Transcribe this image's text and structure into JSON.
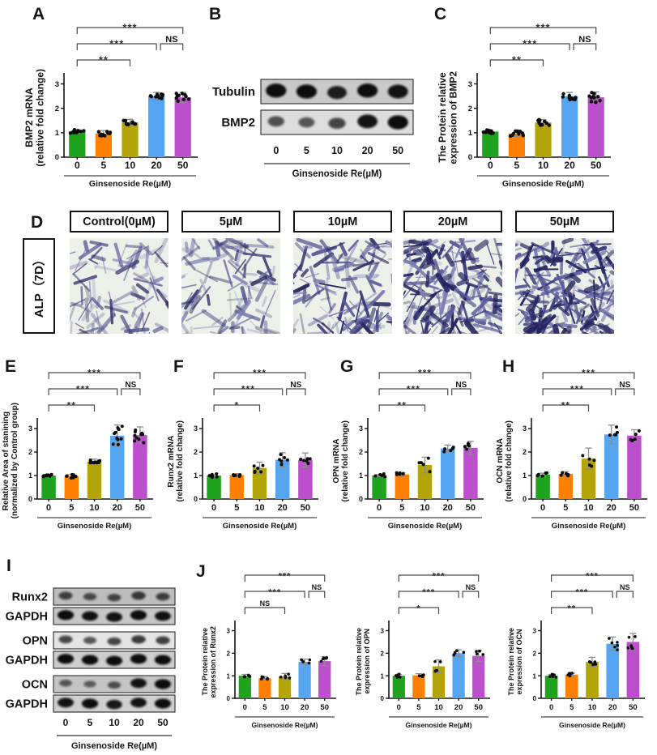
{
  "figure": {
    "panel_letters": {
      "A": "A",
      "B": "B",
      "C": "C",
      "D": "D",
      "E": "E",
      "F": "F",
      "G": "G",
      "H": "H",
      "I": "I",
      "J": "J"
    },
    "doses": [
      "0",
      "5",
      "10",
      "20",
      "50"
    ],
    "xlabel": "Ginsenoside Re(µM)",
    "bar_colors": [
      "#1FA31F",
      "#FF7F00",
      "#B3A409",
      "#56A5F0",
      "#BC4FCB"
    ],
    "dot_color": "#0B0B0B",
    "error_bar_color": "#8C8C8C",
    "axis_color": "#151515",
    "bracket_color": "#4A4A4A"
  },
  "chart_data": [
    {
      "panel": "A",
      "type": "bar",
      "ylabel": [
        "BMP2 mRNA",
        "(relative fold change)"
      ],
      "categories": [
        "0",
        "5",
        "10",
        "20",
        "50"
      ],
      "values": [
        1.05,
        0.97,
        1.42,
        2.5,
        2.45
      ],
      "errors": [
        0.07,
        0.12,
        0.13,
        0.15,
        0.2
      ],
      "points_per_bar": 10,
      "yticks": [
        0,
        1,
        2,
        3
      ],
      "ylim": [
        0,
        3.45
      ],
      "xlabel": "Ginsenoside Re(µM)",
      "significance": [
        {
          "from": "0",
          "to": "10",
          "label": "**"
        },
        {
          "from": "0",
          "to": "20",
          "label": "***"
        },
        {
          "from": "0",
          "to": "50",
          "label": "***"
        },
        {
          "from": "20",
          "to": "50",
          "label": "NS"
        }
      ]
    },
    {
      "panel": "C",
      "type": "bar",
      "ylabel": [
        "The Protein relative",
        "expression of BMP2"
      ],
      "categories": [
        "0",
        "5",
        "10",
        "20",
        "50"
      ],
      "values": [
        1.05,
        0.97,
        1.42,
        2.5,
        2.45
      ],
      "errors": [
        0.06,
        0.12,
        0.12,
        0.15,
        0.22
      ],
      "points_per_bar": 10,
      "yticks": [
        0,
        1,
        2,
        3
      ],
      "ylim": [
        0,
        3.45
      ],
      "xlabel": "Ginsenoside Re(µM)",
      "significance": [
        {
          "from": "0",
          "to": "10",
          "label": "**"
        },
        {
          "from": "0",
          "to": "20",
          "label": "***"
        },
        {
          "from": "0",
          "to": "50",
          "label": "***"
        },
        {
          "from": "20",
          "to": "50",
          "label": "NS"
        }
      ]
    },
    {
      "panel": "E",
      "type": "bar",
      "ylabel": [
        "Relative Area of stanining",
        "(normalized by Control group)"
      ],
      "categories": [
        "0",
        "5",
        "10",
        "20",
        "50"
      ],
      "values": [
        1.0,
        0.97,
        1.6,
        2.7,
        2.72
      ],
      "errors": [
        0.06,
        0.07,
        0.1,
        0.45,
        0.35
      ],
      "points_per_bar": 10,
      "yticks": [
        0,
        1,
        2,
        3
      ],
      "ylim": [
        0,
        3.45
      ],
      "xlabel": "Ginsenoside Re(µM)",
      "significance": [
        {
          "from": "0",
          "to": "10",
          "label": "**"
        },
        {
          "from": "0",
          "to": "20",
          "label": "***"
        },
        {
          "from": "0",
          "to": "50",
          "label": "***"
        },
        {
          "from": "20",
          "to": "50",
          "label": "NS"
        }
      ]
    },
    {
      "panel": "F",
      "type": "bar",
      "ylabel": [
        "Runx2 mRNA",
        "(relative fold change)"
      ],
      "categories": [
        "0",
        "5",
        "10",
        "20",
        "50"
      ],
      "values": [
        1.0,
        1.02,
        1.32,
        1.67,
        1.66
      ],
      "errors": [
        0.04,
        0.06,
        0.25,
        0.3,
        0.3
      ],
      "points_per_bar": 6,
      "yticks": [
        0,
        1,
        2,
        3
      ],
      "ylim": [
        0,
        3.45
      ],
      "xlabel": "Ginsenoside Re(µM)",
      "significance": [
        {
          "from": "0",
          "to": "10",
          "label": "*"
        },
        {
          "from": "0",
          "to": "20",
          "label": "***"
        },
        {
          "from": "0",
          "to": "50",
          "label": "***"
        },
        {
          "from": "20",
          "to": "50",
          "label": "NS"
        }
      ]
    },
    {
      "panel": "G",
      "type": "bar",
      "ylabel": [
        "OPN mRNA",
        "(relative fold change)"
      ],
      "categories": [
        "0",
        "5",
        "10",
        "20",
        "50"
      ],
      "values": [
        1.0,
        1.05,
        1.45,
        2.15,
        2.18
      ],
      "errors": [
        0.04,
        0.08,
        0.33,
        0.15,
        0.28
      ],
      "points_per_bar": 5,
      "yticks": [
        0,
        1,
        2,
        3
      ],
      "ylim": [
        0,
        3.45
      ],
      "xlabel": "Ginsenoside Re(µM)",
      "significance": [
        {
          "from": "0",
          "to": "10",
          "label": "**"
        },
        {
          "from": "0",
          "to": "20",
          "label": "***"
        },
        {
          "from": "0",
          "to": "50",
          "label": "***"
        },
        {
          "from": "20",
          "to": "50",
          "label": "NS"
        }
      ]
    },
    {
      "panel": "H",
      "type": "bar",
      "ylabel": [
        "OCN mRNA",
        "(relative fold change)"
      ],
      "categories": [
        "0",
        "5",
        "10",
        "20",
        "50"
      ],
      "values": [
        1.04,
        1.07,
        1.72,
        2.75,
        2.7
      ],
      "errors": [
        0.06,
        0.1,
        0.45,
        0.4,
        0.25
      ],
      "points_per_bar": 5,
      "yticks": [
        0,
        1,
        2,
        3
      ],
      "ylim": [
        0,
        3.45
      ],
      "xlabel": "Ginsenoside Re(µM)",
      "significance": [
        {
          "from": "0",
          "to": "10",
          "label": "**"
        },
        {
          "from": "0",
          "to": "20",
          "label": "***"
        },
        {
          "from": "0",
          "to": "50",
          "label": "***"
        },
        {
          "from": "20",
          "to": "50",
          "label": "NS"
        }
      ]
    },
    {
      "panel": "J",
      "type": "bar",
      "ylabel": [
        "The Protein relative",
        "expression of Runx2"
      ],
      "categories": [
        "0",
        "5",
        "10",
        "20",
        "50"
      ],
      "values": [
        1.0,
        0.9,
        0.97,
        1.62,
        1.65
      ],
      "errors": [
        0.06,
        0.06,
        0.13,
        0.12,
        0.2
      ],
      "points_per_bar": 5,
      "yticks": [
        0,
        1,
        2,
        3
      ],
      "ylim": [
        0,
        3.45
      ],
      "xlabel": "Ginsenoside Re(µM)",
      "significance": [
        {
          "from": "0",
          "to": "10",
          "label": "NS"
        },
        {
          "from": "0",
          "to": "20",
          "label": "***"
        },
        {
          "from": "0",
          "to": "50",
          "label": "***"
        },
        {
          "from": "20",
          "to": "50",
          "label": "NS"
        }
      ]
    },
    {
      "panel": "J",
      "type": "bar",
      "ylabel": [
        "The Protein relative",
        "expression of OPN"
      ],
      "categories": [
        "0",
        "5",
        "10",
        "20",
        "50"
      ],
      "values": [
        1.0,
        1.02,
        1.42,
        2.0,
        1.88
      ],
      "errors": [
        0.06,
        0.07,
        0.28,
        0.15,
        0.25
      ],
      "points_per_bar": 5,
      "yticks": [
        0,
        1,
        2,
        3
      ],
      "ylim": [
        0,
        3.45
      ],
      "xlabel": "Ginsenoside Re(µM)",
      "significance": [
        {
          "from": "0",
          "to": "10",
          "label": "*"
        },
        {
          "from": "0",
          "to": "20",
          "label": "***"
        },
        {
          "from": "0",
          "to": "50",
          "label": "***"
        },
        {
          "from": "20",
          "to": "50",
          "label": "NS"
        }
      ]
    },
    {
      "panel": "J",
      "type": "bar",
      "ylabel": [
        "The Protein relative",
        "expression of OCN"
      ],
      "categories": [
        "0",
        "5",
        "10",
        "20",
        "50"
      ],
      "values": [
        1.0,
        1.05,
        1.62,
        2.42,
        2.5
      ],
      "errors": [
        0.05,
        0.06,
        0.2,
        0.3,
        0.38
      ],
      "points_per_bar": 6,
      "yticks": [
        0,
        1,
        2,
        3
      ],
      "ylim": [
        0,
        3.45
      ],
      "xlabel": "Ginsenoside Re(µM)",
      "significance": [
        {
          "from": "0",
          "to": "10",
          "label": "**"
        },
        {
          "from": "0",
          "to": "20",
          "label": "***"
        },
        {
          "from": "0",
          "to": "50",
          "label": "***"
        },
        {
          "from": "20",
          "to": "50",
          "label": "NS"
        }
      ]
    }
  ],
  "blots": {
    "B": {
      "panel": "B",
      "lanes": [
        "0",
        "5",
        "10",
        "20",
        "50"
      ],
      "xlabel": "Ginsenoside Re(µM)",
      "rows": [
        {
          "name": "Tubulin",
          "bg": "#C9C9C9",
          "bands": [
            1,
            1,
            0.85,
            1,
            0.95
          ]
        },
        {
          "name": "BMP2",
          "bg": "#DCDCDC",
          "bands": [
            0.45,
            0.4,
            0.55,
            0.95,
            1
          ]
        }
      ]
    },
    "I": {
      "panel": "I",
      "lanes": [
        "0",
        "5",
        "10",
        "20",
        "50"
      ],
      "xlabel": "Ginsenoside Re(µM)",
      "rows": [
        {
          "name": "Runx2",
          "bg": "#BDBDBD",
          "bands": [
            0.55,
            0.45,
            0.5,
            0.62,
            0.55
          ]
        },
        {
          "name": "GAPDH",
          "bg": "#C6C6C6",
          "bands": [
            1,
            0.95,
            0.95,
            1,
            0.95
          ]
        },
        {
          "name": "OPN",
          "bg": "#E4E4E4",
          "bands": [
            0.55,
            0.42,
            0.55,
            0.65,
            0.6
          ]
        },
        {
          "name": "GAPDH",
          "bg": "#CDCDCD",
          "bands": [
            1,
            1,
            1,
            1,
            1
          ]
        },
        {
          "name": "OCN",
          "bg": "#C4C4C4",
          "bands": [
            0.35,
            0.3,
            0.42,
            0.95,
            1
          ]
        },
        {
          "name": "GAPDH",
          "bg": "#D0D0D0",
          "bands": [
            0.95,
            1,
            0.9,
            0.95,
            1
          ]
        }
      ]
    }
  },
  "alp": {
    "row_label": "ALP（7D）",
    "column_labels": [
      "Control(0µM)",
      "5µM",
      "10µM",
      "20µM",
      "50µM"
    ],
    "stain_density": [
      0.3,
      0.35,
      0.55,
      0.78,
      0.92
    ],
    "bg": "#EDF0E8",
    "stain_colors": [
      "#23235F",
      "#3C3C7E",
      "#5A5A9B",
      "#7D7DB4"
    ]
  }
}
